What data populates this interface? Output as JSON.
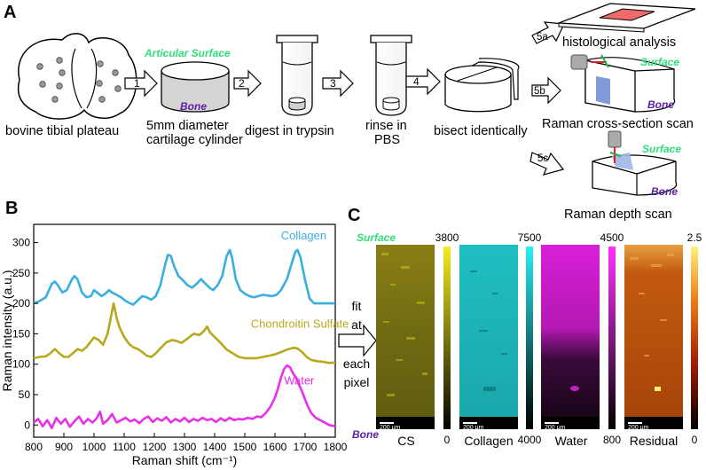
{
  "panels": {
    "a": "A",
    "b": "B",
    "c": "C"
  },
  "workflow": {
    "plateau_label": "bovine tibial plateau",
    "step_numbers": [
      "1",
      "2",
      "3",
      "4",
      "5a",
      "5b",
      "5c"
    ],
    "articular_surface": "Articular Surface",
    "bone": "Bone",
    "cylinder_label_line1": "5mm diameter",
    "cylinder_label_line2": "cartilage cylinder",
    "trypsin_label": "digest in trypsin",
    "rinse_line1": "rinse in",
    "rinse_line2": "PBS",
    "bisect_label": "bisect identically",
    "histology_label": "histological analysis",
    "cross_section_label": "Raman cross-section scan",
    "depth_scan_label": "Raman depth scan",
    "surface": "Surface",
    "colors": {
      "surface_green": "#2ee07a",
      "bone_purple": "#5a1fa8",
      "slide_red": "#f06a6a",
      "scan_blue": "#7f9bd8"
    }
  },
  "fit_label": [
    "fit",
    "at",
    "each",
    "pixel"
  ],
  "maps": {
    "surface": "Surface",
    "bone": "Bone",
    "scale_bar": "200 μm",
    "items": [
      {
        "label": "CS",
        "max": "3800",
        "min": "0",
        "color": "#c8c21a"
      },
      {
        "label": "Collagen",
        "max": "7500",
        "min": "4000",
        "color": "#20d4d8"
      },
      {
        "label": "Water",
        "max": "4500",
        "min": "800",
        "color": "#e020e0"
      },
      {
        "label": "Residual",
        "max": "2.5",
        "min": "0",
        "color": "#d85a10"
      }
    ]
  },
  "chart_data": {
    "type": "line",
    "xlabel": "Raman shift (cm⁻¹)",
    "ylabel": "Raman intensity (a.u.)",
    "xlim": [
      800,
      1800
    ],
    "ylim": [
      -20,
      330
    ],
    "xticks": [
      800,
      900,
      1000,
      1100,
      1200,
      1300,
      1400,
      1500,
      1600,
      1700,
      1800
    ],
    "yticks": [
      0,
      50,
      100,
      150,
      200,
      250,
      300
    ],
    "series": [
      {
        "name": "Collagen",
        "color": "#3aaee0",
        "points": [
          [
            800,
            200
          ],
          [
            820,
            204
          ],
          [
            840,
            210
          ],
          [
            860,
            232
          ],
          [
            870,
            236
          ],
          [
            880,
            230
          ],
          [
            895,
            218
          ],
          [
            910,
            222
          ],
          [
            925,
            238
          ],
          [
            935,
            245
          ],
          [
            945,
            240
          ],
          [
            960,
            218
          ],
          [
            975,
            210
          ],
          [
            990,
            212
          ],
          [
            1000,
            222
          ],
          [
            1010,
            218
          ],
          [
            1025,
            212
          ],
          [
            1035,
            215
          ],
          [
            1050,
            222
          ],
          [
            1060,
            218
          ],
          [
            1075,
            214
          ],
          [
            1090,
            210
          ],
          [
            1105,
            204
          ],
          [
            1120,
            200
          ],
          [
            1130,
            198
          ],
          [
            1145,
            205
          ],
          [
            1160,
            212
          ],
          [
            1175,
            210
          ],
          [
            1190,
            206
          ],
          [
            1205,
            212
          ],
          [
            1220,
            230
          ],
          [
            1235,
            262
          ],
          [
            1245,
            280
          ],
          [
            1255,
            278
          ],
          [
            1265,
            262
          ],
          [
            1280,
            245
          ],
          [
            1295,
            238
          ],
          [
            1310,
            230
          ],
          [
            1325,
            226
          ],
          [
            1340,
            232
          ],
          [
            1355,
            240
          ],
          [
            1370,
            232
          ],
          [
            1385,
            225
          ],
          [
            1395,
            222
          ],
          [
            1410,
            230
          ],
          [
            1425,
            245
          ],
          [
            1440,
            278
          ],
          [
            1450,
            288
          ],
          [
            1458,
            275
          ],
          [
            1470,
            240
          ],
          [
            1485,
            222
          ],
          [
            1500,
            216
          ],
          [
            1515,
            212
          ],
          [
            1530,
            210
          ],
          [
            1545,
            212
          ],
          [
            1560,
            214
          ],
          [
            1575,
            213
          ],
          [
            1590,
            212
          ],
          [
            1605,
            214
          ],
          [
            1620,
            222
          ],
          [
            1640,
            240
          ],
          [
            1655,
            265
          ],
          [
            1668,
            285
          ],
          [
            1675,
            288
          ],
          [
            1685,
            275
          ],
          [
            1700,
            238
          ],
          [
            1715,
            208
          ],
          [
            1730,
            200
          ],
          [
            1750,
            200
          ],
          [
            1775,
            200
          ],
          [
            1800,
            200
          ]
        ]
      },
      {
        "name": "Chondroitin Sulfate",
        "color": "#b8a81c",
        "points": [
          [
            800,
            110
          ],
          [
            820,
            112
          ],
          [
            840,
            113
          ],
          [
            855,
            118
          ],
          [
            870,
            125
          ],
          [
            885,
            118
          ],
          [
            900,
            112
          ],
          [
            915,
            112
          ],
          [
            930,
            118
          ],
          [
            945,
            125
          ],
          [
            960,
            122
          ],
          [
            975,
            128
          ],
          [
            990,
            138
          ],
          [
            1000,
            144
          ],
          [
            1015,
            140
          ],
          [
            1030,
            132
          ],
          [
            1045,
            150
          ],
          [
            1055,
            175
          ],
          [
            1065,
            200
          ],
          [
            1075,
            176
          ],
          [
            1085,
            160
          ],
          [
            1100,
            145
          ],
          [
            1115,
            134
          ],
          [
            1130,
            128
          ],
          [
            1145,
            125
          ],
          [
            1160,
            120
          ],
          [
            1175,
            114
          ],
          [
            1190,
            112
          ],
          [
            1205,
            118
          ],
          [
            1220,
            126
          ],
          [
            1240,
            136
          ],
          [
            1260,
            140
          ],
          [
            1275,
            138
          ],
          [
            1290,
            135
          ],
          [
            1310,
            142
          ],
          [
            1330,
            150
          ],
          [
            1350,
            148
          ],
          [
            1365,
            155
          ],
          [
            1375,
            162
          ],
          [
            1385,
            152
          ],
          [
            1400,
            145
          ],
          [
            1420,
            135
          ],
          [
            1440,
            124
          ],
          [
            1460,
            118
          ],
          [
            1480,
            112
          ],
          [
            1500,
            110
          ],
          [
            1520,
            110
          ],
          [
            1540,
            110
          ],
          [
            1560,
            112
          ],
          [
            1580,
            114
          ],
          [
            1600,
            116
          ],
          [
            1620,
            120
          ],
          [
            1640,
            124
          ],
          [
            1660,
            127
          ],
          [
            1675,
            126
          ],
          [
            1690,
            120
          ],
          [
            1705,
            112
          ],
          [
            1720,
            107
          ],
          [
            1740,
            105
          ],
          [
            1760,
            104
          ],
          [
            1780,
            102
          ],
          [
            1800,
            103
          ]
        ]
      },
      {
        "name": "Water",
        "color": "#e830e8",
        "points": [
          [
            800,
            4
          ],
          [
            815,
            10
          ],
          [
            830,
            -2
          ],
          [
            845,
            8
          ],
          [
            860,
            -5
          ],
          [
            875,
            12
          ],
          [
            890,
            2
          ],
          [
            905,
            10
          ],
          [
            920,
            -3
          ],
          [
            935,
            6
          ],
          [
            950,
            14
          ],
          [
            965,
            2
          ],
          [
            980,
            10
          ],
          [
            995,
            4
          ],
          [
            1010,
            12
          ],
          [
            1020,
            22
          ],
          [
            1030,
            2
          ],
          [
            1045,
            8
          ],
          [
            1060,
            18
          ],
          [
            1075,
            4
          ],
          [
            1090,
            8
          ],
          [
            1105,
            12
          ],
          [
            1120,
            6
          ],
          [
            1135,
            9
          ],
          [
            1150,
            3
          ],
          [
            1165,
            10
          ],
          [
            1180,
            14
          ],
          [
            1195,
            5
          ],
          [
            1210,
            11
          ],
          [
            1225,
            7
          ],
          [
            1240,
            13
          ],
          [
            1255,
            4
          ],
          [
            1270,
            10
          ],
          [
            1285,
            6
          ],
          [
            1300,
            12
          ],
          [
            1315,
            5
          ],
          [
            1330,
            10
          ],
          [
            1345,
            7
          ],
          [
            1360,
            12
          ],
          [
            1375,
            8
          ],
          [
            1390,
            10
          ],
          [
            1405,
            5
          ],
          [
            1420,
            11
          ],
          [
            1435,
            7
          ],
          [
            1450,
            12
          ],
          [
            1465,
            8
          ],
          [
            1480,
            10
          ],
          [
            1495,
            9
          ],
          [
            1510,
            12
          ],
          [
            1525,
            10
          ],
          [
            1540,
            14
          ],
          [
            1555,
            13
          ],
          [
            1570,
            20
          ],
          [
            1585,
            30
          ],
          [
            1600,
            45
          ],
          [
            1610,
            60
          ],
          [
            1620,
            78
          ],
          [
            1630,
            92
          ],
          [
            1640,
            98
          ],
          [
            1650,
            95
          ],
          [
            1660,
            85
          ],
          [
            1670,
            78
          ],
          [
            1680,
            66
          ],
          [
            1690,
            55
          ],
          [
            1700,
            42
          ],
          [
            1710,
            30
          ],
          [
            1720,
            20
          ],
          [
            1735,
            12
          ],
          [
            1750,
            8
          ],
          [
            1765,
            4
          ],
          [
            1780,
            0
          ],
          [
            1800,
            -2
          ]
        ]
      }
    ]
  }
}
